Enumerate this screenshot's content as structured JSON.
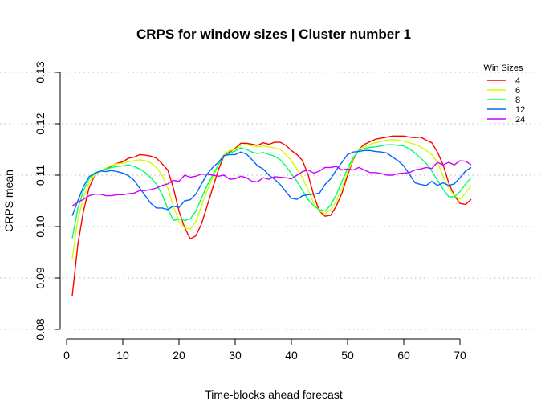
{
  "chart_data": {
    "type": "line",
    "title": "CRPS for window sizes | Cluster number  1",
    "xlabel": "Time-blocks ahead forecast",
    "ylabel": "CRPS mean",
    "xlim": [
      1,
      72
    ],
    "ylim": [
      0.08,
      0.13
    ],
    "xticks": [
      0,
      10,
      20,
      30,
      40,
      50,
      60,
      70
    ],
    "yticks": [
      0.08,
      0.09,
      0.1,
      0.11,
      0.12,
      0.13
    ],
    "ytick_labels": [
      "0.08",
      "0.09",
      "0.10",
      "0.11",
      "0.12",
      "0.13"
    ],
    "grid": "horizontal dotted",
    "legend_title": "Win Sizes",
    "legend_position": "top-right",
    "x": [
      1,
      2,
      3,
      4,
      5,
      6,
      7,
      8,
      9,
      10,
      11,
      12,
      13,
      14,
      15,
      16,
      17,
      18,
      19,
      20,
      21,
      22,
      23,
      24,
      25,
      26,
      27,
      28,
      29,
      30,
      31,
      32,
      33,
      34,
      35,
      36,
      37,
      38,
      39,
      40,
      41,
      42,
      43,
      44,
      45,
      46,
      47,
      48,
      49,
      50,
      51,
      52,
      53,
      54,
      55,
      56,
      57,
      58,
      59,
      60,
      61,
      62,
      63,
      64,
      65,
      66,
      67,
      68,
      69,
      70,
      71,
      72
    ],
    "series": [
      {
        "name": "4",
        "color": "#ff0000",
        "values": [
          0.0865,
          0.0965,
          0.103,
          0.1075,
          0.11,
          0.1108,
          0.1112,
          0.1118,
          0.1123,
          0.1126,
          0.1133,
          0.1135,
          0.114,
          0.1139,
          0.1137,
          0.1133,
          0.1122,
          0.111,
          0.1075,
          0.103,
          0.0998,
          0.0976,
          0.0982,
          0.1005,
          0.104,
          0.1075,
          0.111,
          0.1137,
          0.1145,
          0.1152,
          0.1162,
          0.1162,
          0.116,
          0.1158,
          0.1163,
          0.116,
          0.1164,
          0.1164,
          0.1158,
          0.1148,
          0.114,
          0.1128,
          0.11,
          0.106,
          0.103,
          0.102,
          0.1022,
          0.104,
          0.1065,
          0.11,
          0.113,
          0.115,
          0.116,
          0.1165,
          0.117,
          0.1172,
          0.1174,
          0.1176,
          0.1176,
          0.1176,
          0.1174,
          0.1173,
          0.1174,
          0.1168,
          0.1163,
          0.1145,
          0.112,
          0.1085,
          0.106,
          0.1045,
          0.1043,
          0.1053
        ]
      },
      {
        "name": "6",
        "color": "#ccff00",
        "values": [
          0.0937,
          0.1015,
          0.1055,
          0.1085,
          0.11,
          0.1108,
          0.1114,
          0.1119,
          0.1122,
          0.1123,
          0.1126,
          0.1128,
          0.113,
          0.1128,
          0.1124,
          0.1115,
          0.11,
          0.1075,
          0.104,
          0.101,
          0.0998,
          0.0995,
          0.101,
          0.104,
          0.107,
          0.1095,
          0.112,
          0.114,
          0.1148,
          0.115,
          0.1158,
          0.116,
          0.1157,
          0.1155,
          0.1157,
          0.1155,
          0.1153,
          0.115,
          0.114,
          0.1128,
          0.1112,
          0.1095,
          0.107,
          0.1045,
          0.103,
          0.1025,
          0.1032,
          0.105,
          0.1075,
          0.1105,
          0.1132,
          0.115,
          0.1156,
          0.116,
          0.1163,
          0.1166,
          0.1168,
          0.1169,
          0.1168,
          0.1166,
          0.1163,
          0.116,
          0.1155,
          0.1148,
          0.114,
          0.1125,
          0.1098,
          0.1075,
          0.106,
          0.1053,
          0.1065,
          0.108
        ]
      },
      {
        "name": "8",
        "color": "#00ff66",
        "values": [
          0.0977,
          0.1035,
          0.107,
          0.1093,
          0.1103,
          0.1108,
          0.1112,
          0.1115,
          0.1117,
          0.1118,
          0.112,
          0.1117,
          0.1112,
          0.1105,
          0.1095,
          0.1082,
          0.1062,
          0.1035,
          0.1012,
          0.1015,
          0.1012,
          0.1015,
          0.103,
          0.1055,
          0.108,
          0.11,
          0.112,
          0.1137,
          0.1143,
          0.1147,
          0.1153,
          0.115,
          0.1145,
          0.1142,
          0.1144,
          0.114,
          0.1137,
          0.113,
          0.1118,
          0.1103,
          0.1088,
          0.107,
          0.1052,
          0.104,
          0.1033,
          0.103,
          0.1042,
          0.1062,
          0.1088,
          0.1113,
          0.1134,
          0.1148,
          0.1152,
          0.1154,
          0.1155,
          0.1157,
          0.1159,
          0.1159,
          0.1158,
          0.1157,
          0.1151,
          0.1143,
          0.1133,
          0.1123,
          0.1108,
          0.109,
          0.1073,
          0.1058,
          0.1058,
          0.1068,
          0.1083,
          0.1095
        ]
      },
      {
        "name": "12",
        "color": "#0066ff",
        "values": [
          0.1021,
          0.105,
          0.1078,
          0.1097,
          0.1104,
          0.1108,
          0.1107,
          0.1109,
          0.1107,
          0.1104,
          0.1099,
          0.109,
          0.1075,
          0.106,
          0.1045,
          0.1036,
          0.1036,
          0.1033,
          0.104,
          0.1037,
          0.105,
          0.1052,
          0.1063,
          0.1083,
          0.1102,
          0.1115,
          0.1125,
          0.1138,
          0.114,
          0.114,
          0.1145,
          0.1141,
          0.113,
          0.1118,
          0.1112,
          0.11,
          0.1092,
          0.1082,
          0.1068,
          0.1055,
          0.1053,
          0.106,
          0.1062,
          0.1063,
          0.1065,
          0.1082,
          0.1093,
          0.111,
          0.1125,
          0.114,
          0.1145,
          0.1146,
          0.1148,
          0.1148,
          0.1146,
          0.1145,
          0.1143,
          0.1135,
          0.1128,
          0.1118,
          0.1102,
          0.1085,
          0.1082,
          0.108,
          0.1088,
          0.108,
          0.1085,
          0.108,
          0.1083,
          0.1095,
          0.1108,
          0.1115
        ]
      },
      {
        "name": "24",
        "color": "#cc00ff",
        "values": [
          0.104,
          0.1047,
          0.1053,
          0.106,
          0.1063,
          0.1063,
          0.106,
          0.106,
          0.1062,
          0.1062,
          0.1064,
          0.1065,
          0.107,
          0.107,
          0.1072,
          0.1075,
          0.108,
          0.1083,
          0.109,
          0.1088,
          0.11,
          0.1096,
          0.1098,
          0.1102,
          0.1102,
          0.11,
          0.1098,
          0.11,
          0.1092,
          0.1093,
          0.1098,
          0.1095,
          0.1088,
          0.1087,
          0.1095,
          0.1092,
          0.1097,
          0.1096,
          0.1095,
          0.1093,
          0.11,
          0.1107,
          0.111,
          0.1104,
          0.1108,
          0.1115,
          0.1115,
          0.1117,
          0.111,
          0.1112,
          0.111,
          0.1115,
          0.111,
          0.1105,
          0.1105,
          0.1103,
          0.11,
          0.11,
          0.1103,
          0.1104,
          0.1105,
          0.111,
          0.1112,
          0.1115,
          0.1113,
          0.1125,
          0.112,
          0.1125,
          0.112,
          0.1128,
          0.1127,
          0.112
        ]
      }
    ]
  }
}
